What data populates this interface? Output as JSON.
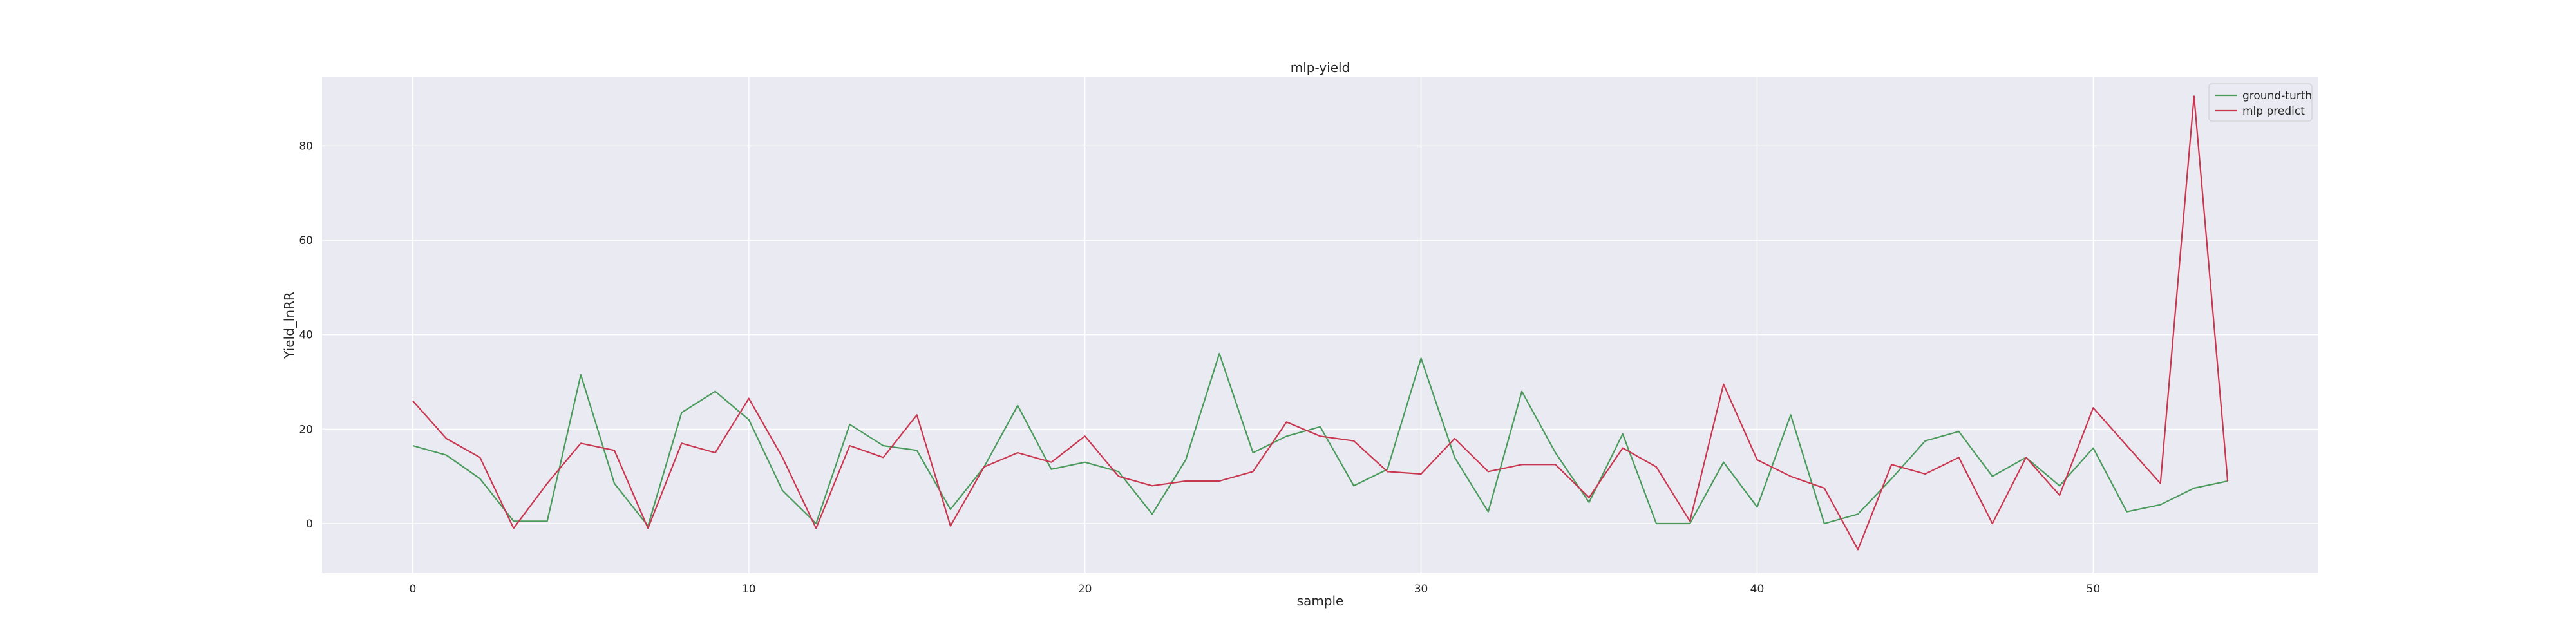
{
  "chart_data": {
    "type": "line",
    "title": "mlp-yield",
    "xlabel": "sample",
    "ylabel": "Yield_lnRR",
    "xlim": [
      -2.7,
      56.7
    ],
    "ylim": [
      -10.5,
      94.5
    ],
    "xticks": [
      0,
      10,
      20,
      30,
      40,
      50
    ],
    "yticks": [
      0,
      20,
      40,
      60,
      80
    ],
    "grid": true,
    "legend_position": "top-right",
    "x": [
      0,
      1,
      2,
      3,
      4,
      5,
      6,
      7,
      8,
      9,
      10,
      11,
      12,
      13,
      14,
      15,
      16,
      17,
      18,
      19,
      20,
      21,
      22,
      23,
      24,
      25,
      26,
      27,
      28,
      29,
      30,
      31,
      32,
      33,
      34,
      35,
      36,
      37,
      38,
      39,
      40,
      41,
      42,
      43,
      44,
      45,
      46,
      47,
      48,
      49,
      50,
      51,
      52,
      53,
      54
    ],
    "series": [
      {
        "name": "ground-turth",
        "color": "#4a9a5c",
        "values": [
          16.5,
          14.5,
          9.5,
          0.5,
          0.5,
          31.5,
          8.5,
          -0.5,
          23.5,
          28,
          22,
          7,
          0,
          21,
          16.5,
          15.5,
          3,
          12,
          25,
          11.5,
          13,
          11,
          2,
          13.5,
          36,
          15,
          18.5,
          20.5,
          8,
          11.5,
          35,
          14,
          2.5,
          28,
          15,
          4.5,
          19,
          0,
          0,
          13,
          3.5,
          23,
          0,
          2,
          9.5,
          17.5,
          19.5,
          10,
          14,
          8,
          16,
          2.5,
          4,
          7.5,
          9
        ]
      },
      {
        "name": "mlp predict",
        "color": "#c9364f",
        "values": [
          26,
          18,
          14,
          -1,
          8.5,
          17,
          15.5,
          -1,
          17,
          15,
          26.5,
          14,
          -1,
          16.5,
          14,
          23,
          -0.5,
          12,
          15,
          13,
          18.5,
          10,
          8,
          9,
          9,
          11,
          21.5,
          18.5,
          17.5,
          11,
          10.5,
          18,
          11,
          12.5,
          12.5,
          5.5,
          16,
          12,
          0.5,
          29.5,
          13.5,
          10,
          7.5,
          -5.5,
          12.5,
          10.5,
          14,
          0,
          14,
          6,
          24.5,
          16.5,
          8.5,
          90.5,
          9
        ]
      }
    ]
  }
}
